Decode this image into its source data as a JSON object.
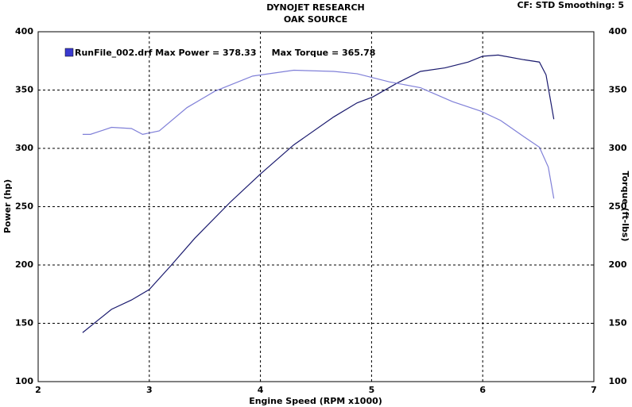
{
  "chart_data": {
    "type": "line",
    "title": "DYNOJET RESEARCH",
    "subtitle": "OAK SOURCE",
    "settings_text": "CF: STD  Smoothing: 5",
    "legend_text": "RunFile_002.drf Max Power = 378.33     Max Torque = 365.78",
    "legend_color": "#3a3ad0",
    "x_label": "Engine Speed (RPM x1000)",
    "y_label": "Power (hp)",
    "y2_label": "Torque (ft-lbs)",
    "xlim": [
      2,
      7
    ],
    "xticks": [
      2,
      3,
      4,
      5,
      6,
      7
    ],
    "ylim": [
      100,
      400
    ],
    "yticks": [
      100,
      150,
      200,
      250,
      300,
      350,
      400
    ],
    "y2lim": [
      100,
      400
    ],
    "y2ticks": [
      100,
      150,
      200,
      250,
      300,
      350,
      400
    ],
    "grid": true,
    "series": [
      {
        "color": "#1a1a6e",
        "x": [
          2.4,
          2.66,
          2.84,
          3.0,
          3.19,
          3.41,
          3.73,
          4.0,
          4.3,
          4.66,
          4.87,
          5.01,
          5.23,
          5.44,
          5.66,
          5.87,
          6.0,
          6.14,
          6.37,
          6.51,
          6.57,
          6.64
        ],
        "values": [
          142,
          162,
          170,
          179,
          199,
          223,
          254,
          278,
          303,
          327,
          339,
          344,
          356,
          366,
          369,
          374,
          379,
          380,
          376,
          374,
          363,
          325
        ]
      },
      {
        "color": "#8080d8",
        "axis": "y2",
        "x": [
          2.4,
          2.47,
          2.66,
          2.84,
          2.94,
          3.09,
          3.34,
          3.59,
          3.93,
          4.3,
          4.66,
          4.87,
          5.16,
          5.44,
          5.73,
          5.98,
          6.16,
          6.37,
          6.51,
          6.59,
          6.64
        ],
        "values": [
          312,
          312,
          318,
          317,
          312,
          315,
          335,
          349,
          362,
          367,
          366,
          364,
          357,
          352,
          340,
          332,
          324,
          310,
          301,
          284,
          257
        ]
      }
    ]
  }
}
